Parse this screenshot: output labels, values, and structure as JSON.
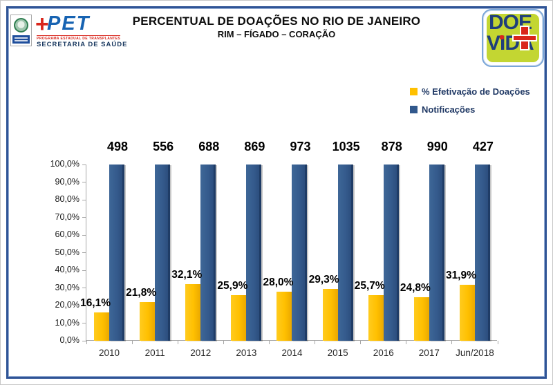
{
  "header": {
    "title": "PERCENTUAL DE DOAÇÕES NO RIO DE JANEIRO",
    "subtitle": "RIM – FÍGADO – CORAÇÃO"
  },
  "logos": {
    "pet": {
      "plus": "+",
      "name": "PET",
      "tagline": "PROGRAMA ESTADUAL DE TRANSPLANTES",
      "org": "SECRETARIA DE SAÚDE"
    },
    "doevida": {
      "line1": "DOE",
      "line2": "VIDA"
    }
  },
  "legend": {
    "items": [
      {
        "label": "% Efetivação de Doações",
        "color": "#FFC000"
      },
      {
        "label": "Notificações",
        "color": "#31588C"
      }
    ]
  },
  "chart_data": {
    "type": "bar",
    "title": "PERCENTUAL DE DOAÇÕES NO RIO DE JANEIRO",
    "subtitle": "RIM – FÍGADO – CORAÇÃO",
    "categories": [
      "2010",
      "2011",
      "2012",
      "2013",
      "2014",
      "2015",
      "2016",
      "2017",
      "Jun/2018"
    ],
    "series": [
      {
        "name": "% Efetivação de Doações",
        "color": "#FFC000",
        "unit": "%",
        "values": [
          16.1,
          21.8,
          32.1,
          25.9,
          28.0,
          29.3,
          25.7,
          24.8,
          31.9
        ],
        "labels": [
          "16,1%",
          "21,8%",
          "32,1%",
          "25,9%",
          "28,0%",
          "29,3%",
          "25,7%",
          "24,8%",
          "31,9%"
        ]
      },
      {
        "name": "Notificações",
        "color": "#31588C",
        "bar_height_percent": 100,
        "values": [
          498,
          556,
          688,
          869,
          973,
          1035,
          878,
          990,
          427
        ],
        "labels": [
          "498",
          "556",
          "688",
          "869",
          "973",
          "1035",
          "878",
          "990",
          "427"
        ]
      }
    ],
    "xlabel": "",
    "ylabel": "",
    "ylim": [
      0,
      100
    ],
    "yticks": [
      "0,0%",
      "10,0%",
      "20,0%",
      "30,0%",
      "40,0%",
      "50,0%",
      "60,0%",
      "70,0%",
      "80,0%",
      "90,0%",
      "100,0%"
    ],
    "grid": false,
    "legend_position": "top-right"
  }
}
